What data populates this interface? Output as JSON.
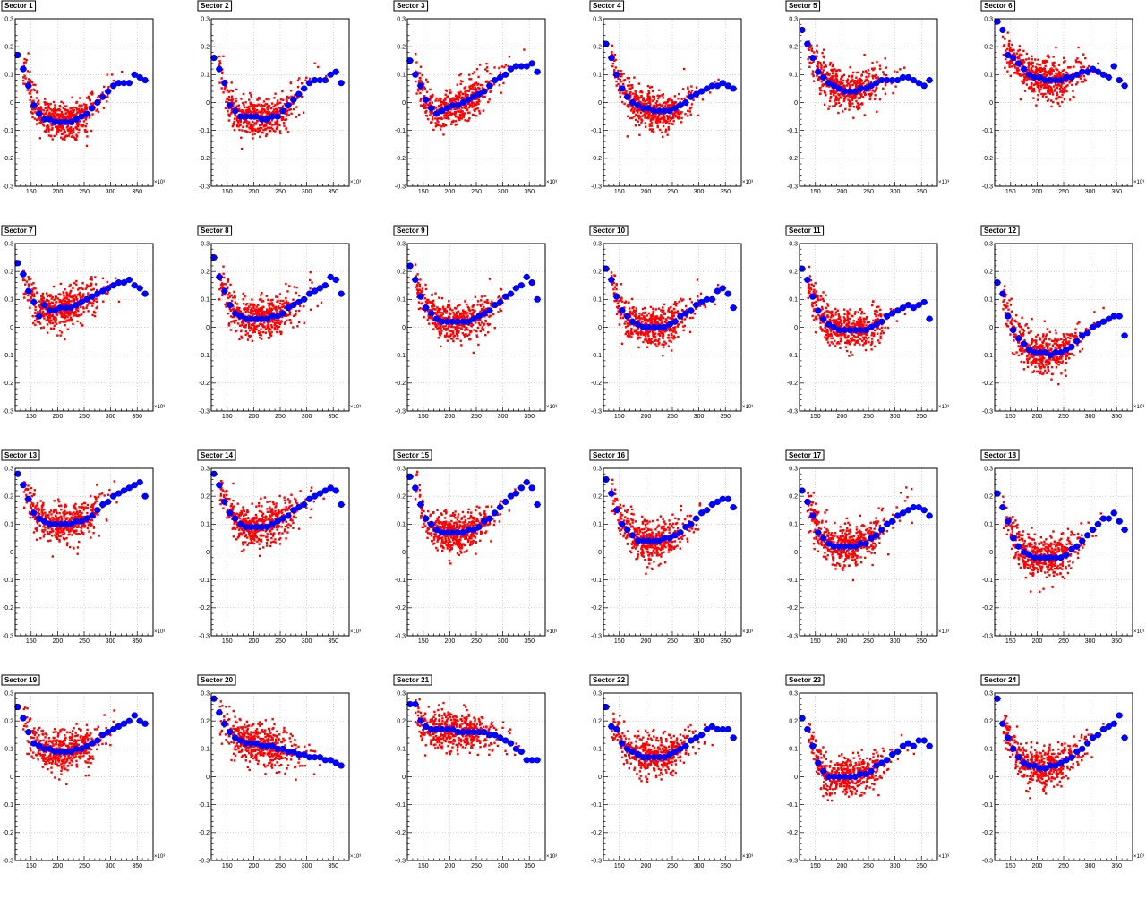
{
  "axes": {
    "x_ticks": [
      150,
      200,
      250,
      300,
      350
    ],
    "y_ticks": [
      -0.3,
      -0.2,
      -0.1,
      0,
      0.1,
      0.2,
      0.3
    ],
    "y_tick_labels": [
      "-0.3",
      "-0.2",
      "-0.1",
      "0",
      "0.1",
      "0.2",
      "0.3"
    ],
    "x_exponent_label": "×10³"
  },
  "colors": {
    "scatter": "#ff0000",
    "profile": "#0000ff",
    "grid": "#b0b0b0",
    "frame": "#000000"
  },
  "chart_data": {
    "type": "scatter",
    "layout": "4 rows × 6 columns of panels",
    "xlim": [
      120,
      380
    ],
    "ylim": [
      -0.3,
      0.3
    ],
    "grid": true,
    "series_styles": {
      "scatter": "small red squares",
      "profile": "blue circles (binned means)"
    },
    "panels": [
      {
        "title": "Sector 1",
        "profile": [
          0.17,
          0.12,
          0.06,
          -0.01,
          -0.04,
          -0.06,
          -0.06,
          -0.07,
          -0.07,
          -0.07,
          -0.07,
          -0.06,
          -0.05,
          -0.04,
          -0.02,
          0.0,
          0.02,
          0.04,
          0.06,
          0.07,
          0.07,
          0.07,
          0.1,
          0.09,
          0.08
        ]
      },
      {
        "title": "Sector 2",
        "profile": [
          0.16,
          0.12,
          0.07,
          -0.01,
          -0.03,
          -0.05,
          -0.05,
          -0.05,
          -0.05,
          -0.06,
          -0.06,
          -0.05,
          -0.05,
          -0.03,
          -0.01,
          0.01,
          0.03,
          0.05,
          0.07,
          0.08,
          0.08,
          0.08,
          0.1,
          0.11,
          0.07
        ]
      },
      {
        "title": "Sector 3",
        "profile": [
          0.15,
          0.1,
          0.06,
          0.01,
          -0.02,
          -0.04,
          -0.03,
          -0.02,
          -0.01,
          -0.01,
          0.0,
          0.01,
          0.02,
          0.03,
          0.04,
          0.06,
          0.08,
          0.09,
          0.1,
          0.12,
          0.13,
          0.13,
          0.13,
          0.14,
          0.11
        ]
      },
      {
        "title": "Sector 4",
        "profile": [
          0.21,
          0.16,
          0.1,
          0.05,
          0.02,
          0.0,
          -0.01,
          -0.02,
          -0.02,
          -0.03,
          -0.03,
          -0.03,
          -0.03,
          -0.02,
          -0.01,
          0.0,
          0.02,
          0.03,
          0.04,
          0.05,
          0.06,
          0.06,
          0.07,
          0.06,
          0.05
        ]
      },
      {
        "title": "Sector 5",
        "profile": [
          0.26,
          0.21,
          0.16,
          0.11,
          0.09,
          0.07,
          0.06,
          0.05,
          0.04,
          0.04,
          0.04,
          0.05,
          0.05,
          0.06,
          0.07,
          0.08,
          0.08,
          0.08,
          0.08,
          0.09,
          0.09,
          0.08,
          0.07,
          0.06,
          0.08
        ]
      },
      {
        "title": "Sector 6",
        "profile": [
          0.29,
          0.26,
          0.17,
          0.16,
          0.14,
          0.12,
          0.1,
          0.09,
          0.09,
          0.08,
          0.08,
          0.08,
          0.08,
          0.09,
          0.09,
          0.1,
          0.11,
          0.11,
          0.12,
          0.11,
          0.1,
          0.09,
          0.13,
          0.08,
          0.06
        ]
      },
      {
        "title": "Sector 7",
        "profile": [
          0.23,
          0.19,
          0.13,
          0.09,
          0.04,
          0.08,
          0.06,
          0.06,
          0.07,
          0.07,
          0.07,
          0.08,
          0.09,
          0.1,
          0.11,
          0.12,
          0.13,
          0.14,
          0.15,
          0.16,
          0.16,
          0.17,
          0.15,
          0.14,
          0.12
        ]
      },
      {
        "title": "Sector 8",
        "profile": [
          0.25,
          0.18,
          0.13,
          0.08,
          0.05,
          0.04,
          0.03,
          0.03,
          0.03,
          0.03,
          0.03,
          0.04,
          0.04,
          0.05,
          0.07,
          0.08,
          0.09,
          0.1,
          0.12,
          0.13,
          0.14,
          0.15,
          0.18,
          0.17,
          0.12
        ]
      },
      {
        "title": "Sector 9",
        "profile": [
          0.22,
          0.17,
          0.11,
          0.07,
          0.05,
          0.03,
          0.02,
          0.02,
          0.02,
          0.02,
          0.02,
          0.02,
          0.03,
          0.04,
          0.05,
          0.06,
          0.08,
          0.09,
          0.11,
          0.12,
          0.14,
          0.15,
          0.18,
          0.16,
          0.1
        ]
      },
      {
        "title": "Sector 10",
        "profile": [
          0.21,
          0.17,
          0.11,
          0.06,
          0.04,
          0.02,
          0.01,
          0.0,
          0.0,
          0.0,
          0.0,
          0.0,
          0.01,
          0.02,
          0.04,
          0.05,
          0.06,
          0.08,
          0.09,
          0.1,
          0.1,
          0.13,
          0.14,
          0.12,
          0.07
        ]
      },
      {
        "title": "Sector 11",
        "profile": [
          0.21,
          0.17,
          0.11,
          0.06,
          0.03,
          0.01,
          0.0,
          -0.01,
          -0.01,
          -0.01,
          -0.01,
          -0.01,
          -0.01,
          0.0,
          0.01,
          0.02,
          0.04,
          0.05,
          0.06,
          0.07,
          0.08,
          0.07,
          0.08,
          0.09,
          0.03
        ]
      },
      {
        "title": "Sector 12",
        "profile": [
          0.16,
          0.12,
          0.04,
          -0.01,
          -0.04,
          -0.06,
          -0.08,
          -0.09,
          -0.09,
          -0.09,
          -0.1,
          -0.09,
          -0.09,
          -0.08,
          -0.07,
          -0.05,
          -0.03,
          -0.02,
          0.0,
          0.01,
          0.02,
          0.03,
          0.04,
          0.04,
          -0.03
        ]
      },
      {
        "title": "Sector 13",
        "profile": [
          0.28,
          0.24,
          0.19,
          0.14,
          0.12,
          0.11,
          0.1,
          0.1,
          0.1,
          0.1,
          0.1,
          0.11,
          0.11,
          0.12,
          0.13,
          0.15,
          0.17,
          0.18,
          0.2,
          0.21,
          0.22,
          0.23,
          0.24,
          0.25,
          0.2
        ]
      },
      {
        "title": "Sector 14",
        "profile": [
          0.28,
          0.24,
          0.18,
          0.14,
          0.12,
          0.1,
          0.09,
          0.09,
          0.09,
          0.09,
          0.09,
          0.1,
          0.11,
          0.12,
          0.13,
          0.15,
          0.16,
          0.17,
          0.19,
          0.2,
          0.21,
          0.22,
          0.23,
          0.22,
          0.17
        ]
      },
      {
        "title": "Sector 15",
        "profile": [
          0.27,
          0.23,
          0.17,
          0.12,
          0.1,
          0.08,
          0.07,
          0.07,
          0.07,
          0.07,
          0.07,
          0.08,
          0.08,
          0.09,
          0.11,
          0.12,
          0.14,
          0.16,
          0.18,
          0.2,
          0.21,
          0.23,
          0.25,
          0.23,
          0.17
        ]
      },
      {
        "title": "Sector 16",
        "profile": [
          0.26,
          0.21,
          0.15,
          0.1,
          0.08,
          0.06,
          0.04,
          0.04,
          0.04,
          0.04,
          0.04,
          0.05,
          0.05,
          0.06,
          0.07,
          0.09,
          0.1,
          0.12,
          0.14,
          0.15,
          0.17,
          0.18,
          0.19,
          0.19,
          0.16
        ]
      },
      {
        "title": "Sector 17",
        "profile": [
          0.22,
          0.18,
          0.13,
          0.07,
          0.05,
          0.03,
          0.02,
          0.02,
          0.02,
          0.02,
          0.02,
          0.03,
          0.03,
          0.05,
          0.06,
          0.08,
          0.1,
          0.11,
          0.13,
          0.14,
          0.15,
          0.16,
          0.16,
          0.15,
          0.13
        ]
      },
      {
        "title": "Sector 18",
        "profile": [
          0.21,
          0.16,
          0.11,
          0.05,
          0.02,
          0.0,
          -0.01,
          -0.02,
          -0.02,
          -0.02,
          -0.02,
          -0.02,
          -0.02,
          -0.01,
          0.01,
          0.02,
          0.04,
          0.06,
          0.08,
          0.1,
          0.12,
          0.12,
          0.14,
          0.11,
          0.08
        ]
      },
      {
        "title": "Sector 19",
        "profile": [
          0.25,
          0.21,
          0.16,
          0.12,
          0.11,
          0.1,
          0.1,
          0.09,
          0.09,
          0.09,
          0.09,
          0.1,
          0.1,
          0.11,
          0.12,
          0.13,
          0.15,
          0.16,
          0.17,
          0.18,
          0.19,
          0.2,
          0.22,
          0.2,
          0.19
        ]
      },
      {
        "title": "Sector 20",
        "profile": [
          0.28,
          0.23,
          0.19,
          0.16,
          0.14,
          0.13,
          0.12,
          0.12,
          0.12,
          0.11,
          0.11,
          0.11,
          0.1,
          0.1,
          0.09,
          0.09,
          0.08,
          0.08,
          0.07,
          0.07,
          0.07,
          0.06,
          0.06,
          0.05,
          0.04
        ]
      },
      {
        "title": "Sector 21",
        "profile": [
          0.26,
          0.26,
          0.2,
          0.18,
          0.17,
          0.17,
          0.17,
          0.17,
          0.17,
          0.16,
          0.16,
          0.16,
          0.16,
          0.16,
          0.16,
          0.15,
          0.15,
          0.14,
          0.13,
          0.12,
          0.1,
          0.09,
          0.06,
          0.06,
          0.06
        ]
      },
      {
        "title": "Sector 22",
        "profile": [
          0.25,
          0.18,
          0.17,
          0.12,
          0.1,
          0.09,
          0.08,
          0.07,
          0.07,
          0.07,
          0.07,
          0.07,
          0.08,
          0.09,
          0.1,
          0.11,
          0.13,
          0.14,
          0.15,
          0.17,
          0.18,
          0.17,
          0.17,
          0.17,
          0.14
        ]
      },
      {
        "title": "Sector 23",
        "profile": [
          0.21,
          0.17,
          0.11,
          0.05,
          0.02,
          0.0,
          0.0,
          0.0,
          0.0,
          0.0,
          0.0,
          0.01,
          0.01,
          0.02,
          0.04,
          0.05,
          0.06,
          0.08,
          0.09,
          0.11,
          0.12,
          0.11,
          0.13,
          0.13,
          0.11
        ]
      },
      {
        "title": "Sector 24",
        "profile": [
          0.28,
          0.19,
          0.14,
          0.1,
          0.07,
          0.05,
          0.04,
          0.04,
          0.03,
          0.03,
          0.04,
          0.04,
          0.05,
          0.06,
          0.07,
          0.09,
          0.1,
          0.12,
          0.14,
          0.15,
          0.17,
          0.18,
          0.19,
          0.22,
          0.14
        ]
      }
    ]
  }
}
